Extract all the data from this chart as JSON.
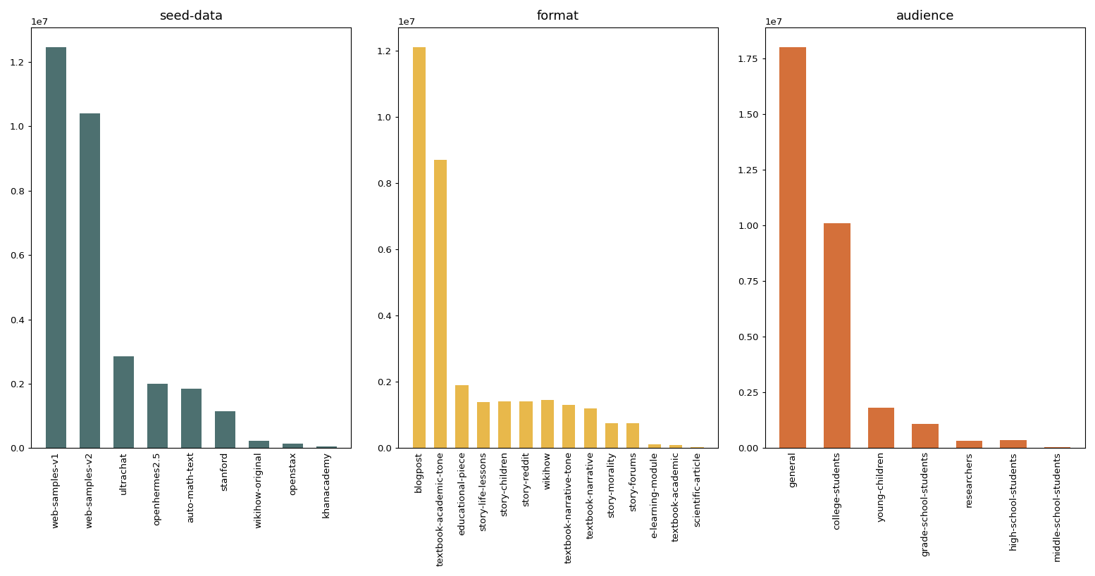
{
  "seed_data": {
    "title": "seed-data",
    "categories": [
      "web-samples-v1",
      "web-samples-v2",
      "ultrachat",
      "openhermes2.5",
      "auto-math-text",
      "stanford",
      "wikihow-original",
      "openstax",
      "khanacademy"
    ],
    "values": [
      12450000.0,
      10400000.0,
      2850000.0,
      2000000.0,
      1850000.0,
      1150000.0,
      220000.0,
      150000.0,
      50000.0
    ],
    "color": "#4d7070"
  },
  "format_data": {
    "title": "format",
    "categories": [
      "blogpost",
      "textbook-academic-tone",
      "educational-piece",
      "story-life-lessons",
      "story-children",
      "story-reddit",
      "wikihow",
      "textbook-narrative-tone",
      "textbook-narrative",
      "story-morality",
      "story-forums",
      "e-learning-module",
      "textbook-academic",
      "scientific-article"
    ],
    "values": [
      12100000.0,
      8700000.0,
      1900000.0,
      1400000.0,
      1420000.0,
      1420000.0,
      1450000.0,
      1300000.0,
      1200000.0,
      750000.0,
      750000.0,
      120000.0,
      100000.0,
      30000.0
    ],
    "color": "#e8b84b"
  },
  "audience_data": {
    "title": "audience",
    "categories": [
      "general",
      "college-students",
      "young-children",
      "grade-school-students",
      "researchers",
      "high-school-students",
      "middle-school-students"
    ],
    "values": [
      18000000.0,
      10100000.0,
      1800000.0,
      1100000.0,
      320000.0,
      350000.0,
      30000.0
    ],
    "color": "#d4703a"
  },
  "background_color": "#ffffff",
  "title_fontsize": 13,
  "tick_fontsize": 9.5
}
